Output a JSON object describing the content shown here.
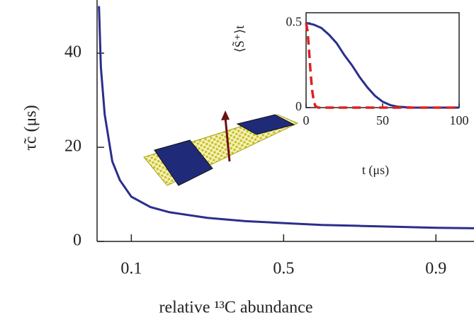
{
  "chart_data": [
    {
      "type": "line",
      "xlabel": "relative ¹³C abundance",
      "ylabel": "τ̃c (μs)",
      "x": [
        0.015,
        0.02,
        0.03,
        0.05,
        0.07,
        0.1,
        0.15,
        0.2,
        0.3,
        0.4,
        0.5,
        0.6,
        0.7,
        0.8,
        0.9,
        1.0
      ],
      "series": [
        {
          "color": "#2b2e8c",
          "values": [
            50,
            37,
            27,
            17,
            13,
            9.5,
            7.3,
            6.2,
            5.0,
            4.3,
            3.9,
            3.5,
            3.3,
            3.1,
            2.9,
            2.8
          ]
        }
      ],
      "xlim": [
        0.01,
        1.0
      ],
      "ylim": [
        0,
        51.3
      ],
      "xticks": [
        0.1,
        0.5,
        0.9
      ],
      "yticks": [
        0,
        20,
        40
      ]
    },
    {
      "type": "line",
      "xlabel": "t (μs)",
      "ylabel": "⟨S̃⁺⟩t",
      "series": [
        {
          "color": "#2b2e8c",
          "dash": false,
          "x": [
            0,
            5,
            10,
            15,
            20,
            25,
            30,
            35,
            40,
            45,
            50,
            55,
            60,
            70,
            80,
            90,
            100
          ],
          "values": [
            0.5,
            0.49,
            0.47,
            0.43,
            0.38,
            0.31,
            0.25,
            0.18,
            0.12,
            0.07,
            0.035,
            0.015,
            0.005,
            0,
            0,
            0,
            0
          ]
        },
        {
          "color": "#e02020",
          "dash": true,
          "x": [
            0,
            1,
            2,
            3,
            4,
            5,
            6,
            8,
            100
          ],
          "values": [
            0.5,
            0.45,
            0.33,
            0.2,
            0.1,
            0.04,
            0.01,
            0,
            0
          ]
        }
      ],
      "xlim": [
        0,
        100
      ],
      "ylim": [
        0,
        0.56
      ],
      "xticks": [
        0,
        50,
        100
      ],
      "yticks": [
        0,
        0.5
      ]
    }
  ]
}
